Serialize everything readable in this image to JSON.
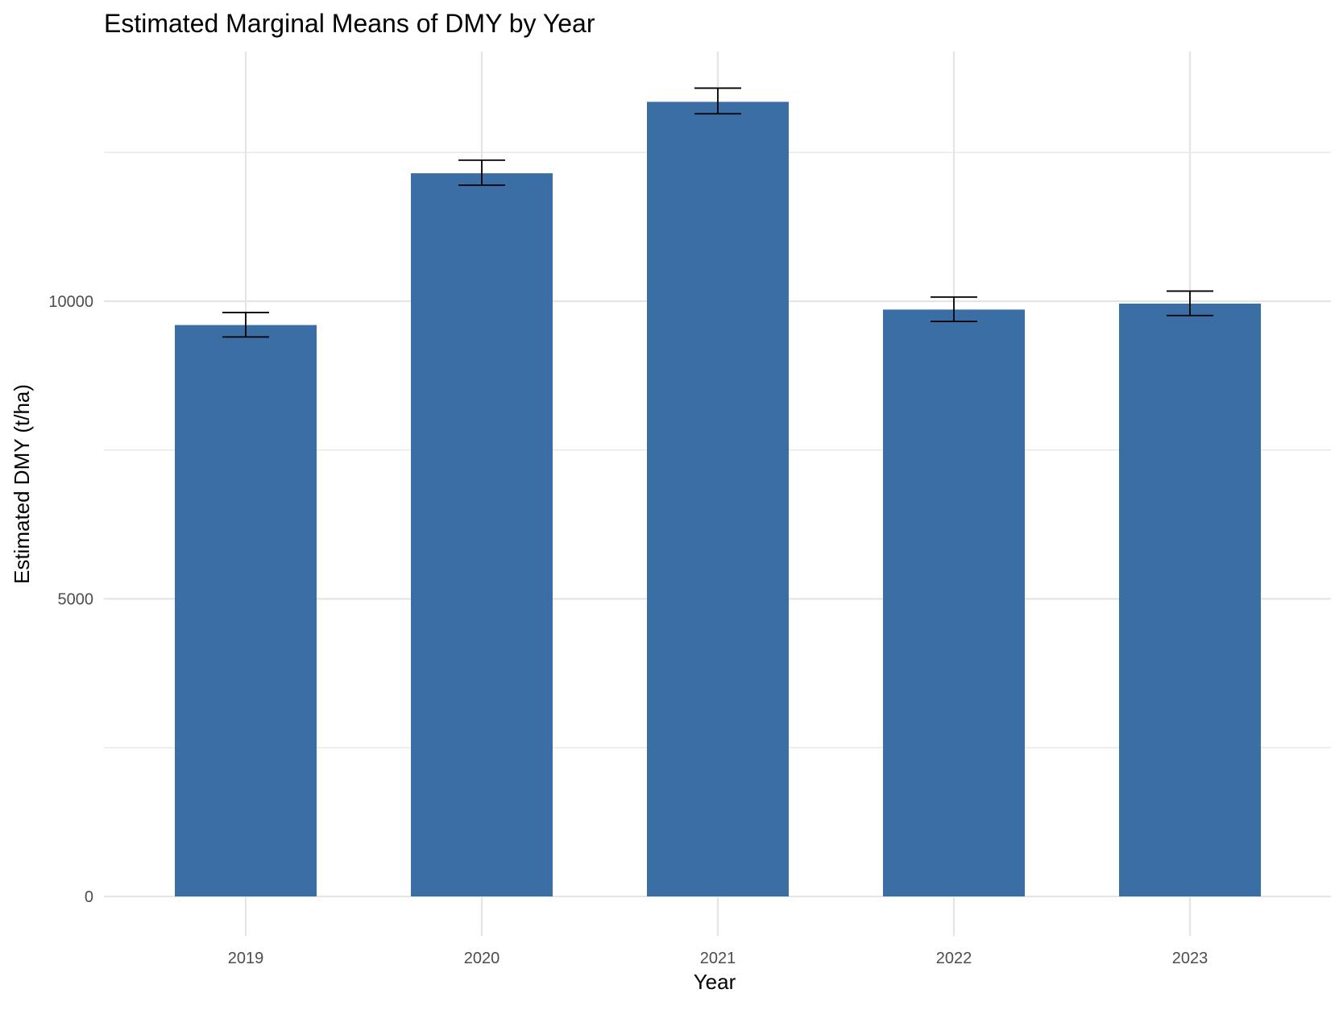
{
  "chart_data": {
    "type": "bar",
    "title": "Estimated Marginal Means of DMY by Year",
    "xlabel": "Year",
    "ylabel": "Estimated DMY (t/ha)",
    "categories": [
      "2019",
      "2020",
      "2021",
      "2022",
      "2023"
    ],
    "values": [
      9600,
      12150,
      13350,
      9860,
      9960
    ],
    "error_lower": [
      9400,
      11950,
      13150,
      9660,
      9760
    ],
    "error_upper": [
      9810,
      12370,
      13580,
      10070,
      10170
    ],
    "ylim": [
      -1000,
      14200
    ],
    "yticks": [
      0,
      5000,
      10000
    ],
    "ytick_labels": [
      "0",
      "5000",
      "10000"
    ],
    "minor_yticks": [
      2500,
      7500,
      12500
    ],
    "grid": true,
    "legend": "none",
    "bar_color": "#3a6ea5",
    "errorbar_color": "#000000",
    "grid_color": "#e5e5e5"
  }
}
